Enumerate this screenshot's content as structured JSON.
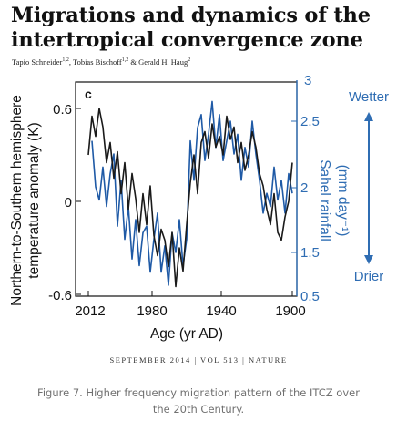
{
  "paper": {
    "title_line1": "Migrations and dynamics of the",
    "title_line2": "intertropical convergence zone",
    "authors": [
      {
        "name": "Tapio Schneider",
        "sup": "1,2"
      },
      {
        "name": "Tobias Bischoff",
        "sup": "1,2"
      },
      {
        "name": "Gerald H. Haug",
        "sup": "2"
      }
    ],
    "author_sep": ", ",
    "author_and": " & ",
    "journal_line": "SEPTEMBER 2014 | VOL 513 | NATURE"
  },
  "caption": "Figure 7. Higher frequency migration pattern of the ITCZ over the 20th Century.",
  "chart_data": {
    "type": "line",
    "panel_label": "c",
    "xlabel": "Age (yr AD)",
    "x_ticks": [
      "2012",
      "1980",
      "1940",
      "1900"
    ],
    "xlim": [
      2012,
      1900
    ],
    "ylabel_left_line1": "Northern-to-Southern hemisphere",
    "ylabel_left_line2": "temperature anomaly (K)",
    "ylim_left": [
      -0.6,
      0.6
    ],
    "y_ticks_left": [
      "0.6",
      "0",
      "-0.6"
    ],
    "ylabel_right_line1": "Sahel rainfall",
    "ylabel_right_line2": "(mm day⁻¹)",
    "ylim_right": [
      0.5,
      3.0
    ],
    "y_ticks_right": [
      "3",
      "2.5",
      "2",
      "1.5",
      "0.5"
    ],
    "annotation_top": "Wetter",
    "annotation_bottom": "Drier",
    "colors": {
      "temperature": "#1a1a1a",
      "rainfall": "#1f5aa6",
      "arrow": "#2f6db3",
      "axis_right": "#2f6db3"
    },
    "series": [
      {
        "axis": "left",
        "color": "#1a1a1a",
        "x": [
          2012,
          2010,
          2008,
          2006,
          2004,
          2002,
          2000,
          1998,
          1996,
          1994,
          1992,
          1990,
          1988,
          1986,
          1984,
          1982,
          1980,
          1978,
          1976,
          1974,
          1972,
          1970,
          1968,
          1966,
          1964,
          1962,
          1960,
          1958,
          1956,
          1954,
          1952,
          1950,
          1948,
          1946,
          1944,
          1942,
          1940,
          1938,
          1936,
          1934,
          1932,
          1930,
          1928,
          1926,
          1924,
          1922,
          1920,
          1918,
          1916,
          1914,
          1912,
          1910,
          1908,
          1906,
          1904,
          1902,
          1900
        ],
        "values": [
          0.3,
          0.55,
          0.42,
          0.6,
          0.48,
          0.25,
          0.38,
          0.15,
          0.32,
          0.05,
          0.25,
          -0.05,
          0.18,
          0.02,
          -0.2,
          0.05,
          -0.15,
          0.1,
          -0.22,
          -0.35,
          -0.18,
          -0.25,
          -0.42,
          -0.2,
          -0.55,
          -0.3,
          -0.45,
          -0.15,
          0.12,
          0.3,
          0.05,
          0.38,
          0.45,
          0.28,
          0.5,
          0.35,
          0.42,
          0.3,
          0.55,
          0.4,
          0.48,
          0.25,
          0.38,
          0.2,
          0.3,
          0.45,
          0.35,
          0.18,
          0.1,
          -0.05,
          -0.15,
          0.05,
          -0.2,
          -0.25,
          -0.1,
          0.0,
          0.25
        ]
      },
      {
        "axis": "right",
        "color": "#1f5aa6",
        "x": [
          2010,
          2008,
          2006,
          2004,
          2002,
          2000,
          1998,
          1996,
          1994,
          1992,
          1990,
          1988,
          1986,
          1984,
          1982,
          1980,
          1978,
          1976,
          1974,
          1972,
          1970,
          1968,
          1966,
          1964,
          1962,
          1960,
          1958,
          1956,
          1954,
          1952,
          1950,
          1948,
          1946,
          1944,
          1942,
          1940,
          1938,
          1936,
          1934,
          1932,
          1930,
          1928,
          1926,
          1924,
          1922,
          1920,
          1918,
          1916,
          1914,
          1912,
          1910,
          1908,
          1906,
          1904,
          1902,
          1900
        ],
        "values": [
          2.35,
          2.0,
          1.9,
          2.15,
          1.85,
          2.1,
          2.25,
          1.7,
          2.05,
          1.6,
          1.85,
          1.45,
          1.75,
          1.4,
          1.65,
          1.7,
          1.35,
          1.6,
          1.8,
          1.35,
          1.55,
          1.25,
          1.65,
          1.5,
          1.75,
          1.4,
          1.6,
          2.35,
          2.05,
          2.45,
          2.55,
          2.2,
          2.4,
          2.65,
          2.3,
          2.55,
          2.2,
          2.35,
          2.5,
          2.25,
          2.4,
          2.05,
          2.3,
          2.15,
          2.5,
          2.25,
          2.05,
          1.8,
          1.95,
          1.85,
          2.15,
          1.9,
          2.05,
          1.8,
          2.1,
          1.95
        ]
      }
    ]
  }
}
